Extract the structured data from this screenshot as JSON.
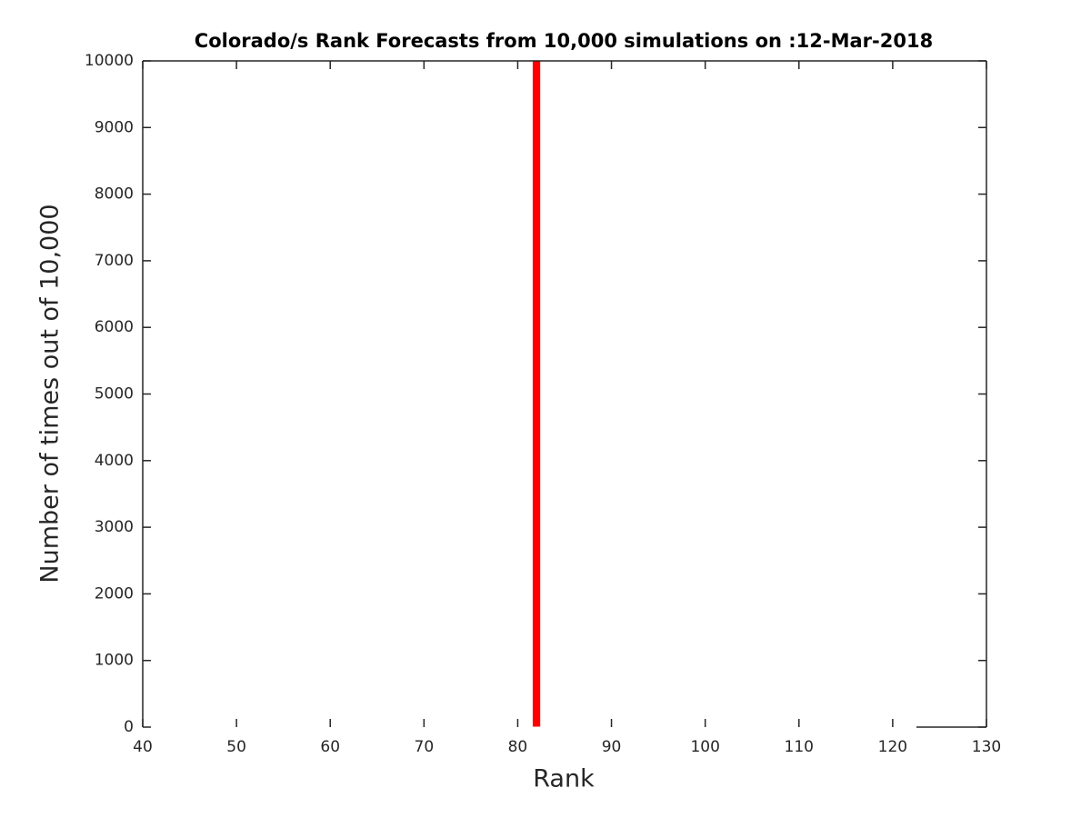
{
  "chart_data": {
    "type": "bar",
    "title": "Colorado/s Rank Forecasts from 10,000 simulations on :12-Mar-2018",
    "x_label": "Rank",
    "y_label": "Number of times out of 10,000",
    "x": [
      82
    ],
    "values": [
      10000
    ],
    "color": "#ff0000",
    "xlim": [
      40,
      130
    ],
    "xticks": [
      40,
      50,
      60,
      70,
      80,
      90,
      100,
      110,
      120,
      130
    ],
    "ylim": [
      0,
      10000
    ],
    "yticks": [
      0,
      1000,
      2000,
      3000,
      4000,
      5000,
      6000,
      7000,
      8000,
      9000,
      10000
    ],
    "grid": false
  }
}
